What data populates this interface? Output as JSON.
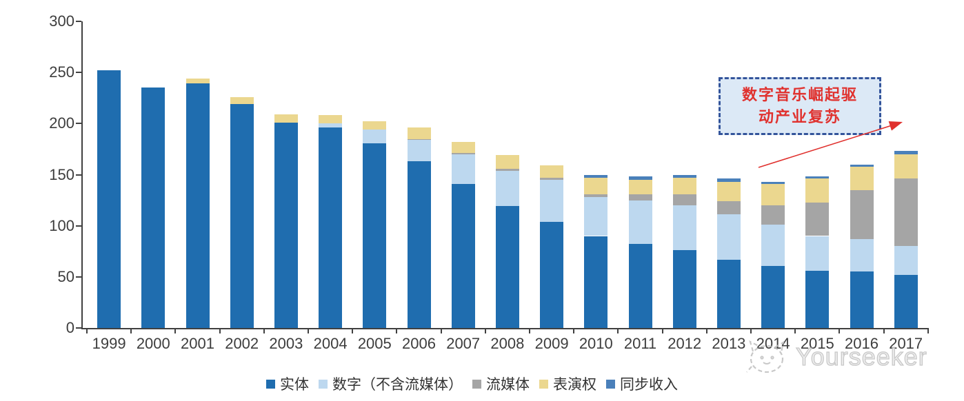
{
  "chart_data": {
    "type": "bar",
    "stacked": true,
    "title": "",
    "xlabel": "",
    "ylabel": "",
    "categories": [
      "1999",
      "2000",
      "2001",
      "2002",
      "2003",
      "2004",
      "2005",
      "2006",
      "2007",
      "2008",
      "2009",
      "2010",
      "2011",
      "2012",
      "2013",
      "2014",
      "2015",
      "2016",
      "2017"
    ],
    "series": [
      {
        "name": "实体",
        "color": "#1F6DAF",
        "values": [
          252,
          235,
          239,
          219,
          201,
          196,
          181,
          163,
          141,
          119,
          104,
          90,
          82,
          76,
          67,
          61,
          56,
          55,
          52
        ]
      },
      {
        "name": "数字（不含流媒体）",
        "color": "#BDD8EF",
        "values": [
          0,
          0,
          0,
          0,
          0,
          4,
          13,
          21,
          29,
          35,
          41,
          38,
          43,
          44,
          44,
          40,
          34,
          32,
          28
        ]
      },
      {
        "name": "流媒体",
        "color": "#A5A5A5",
        "values": [
          0,
          0,
          0,
          0,
          0,
          0,
          0,
          1,
          1,
          2,
          2,
          3,
          6,
          11,
          13,
          19,
          33,
          48,
          66
        ]
      },
      {
        "name": "表演权",
        "color": "#EBD78F",
        "values": [
          0,
          0,
          5,
          7,
          8,
          8,
          8,
          11,
          11,
          13,
          12,
          16,
          14,
          16,
          19,
          21,
          23,
          23,
          24
        ]
      },
      {
        "name": "同步收入",
        "color": "#4A80BA",
        "values": [
          0,
          0,
          0,
          0,
          0,
          0,
          0,
          0,
          0,
          0,
          0,
          3,
          3,
          3,
          3,
          2,
          2,
          2,
          3
        ]
      }
    ],
    "ylim": [
      0,
      300
    ],
    "yticks": [
      0,
      50,
      100,
      150,
      200,
      250,
      300
    ],
    "grid": false,
    "legend_position": "bottom",
    "axis_color": "#404040"
  },
  "annotation": {
    "text": "数字音乐崛起驱动产业复苏",
    "line1": "数字音乐崛起驱",
    "line2": "动产业复苏",
    "text_color": "#E0312E",
    "border_color": "#33549B",
    "fill_color": "#DCE9F6",
    "arrow_color": "#E0312E"
  },
  "watermark": {
    "text": "Yourseeker",
    "icon": "cat-doodle-icon",
    "color": "#BFBFBF"
  }
}
